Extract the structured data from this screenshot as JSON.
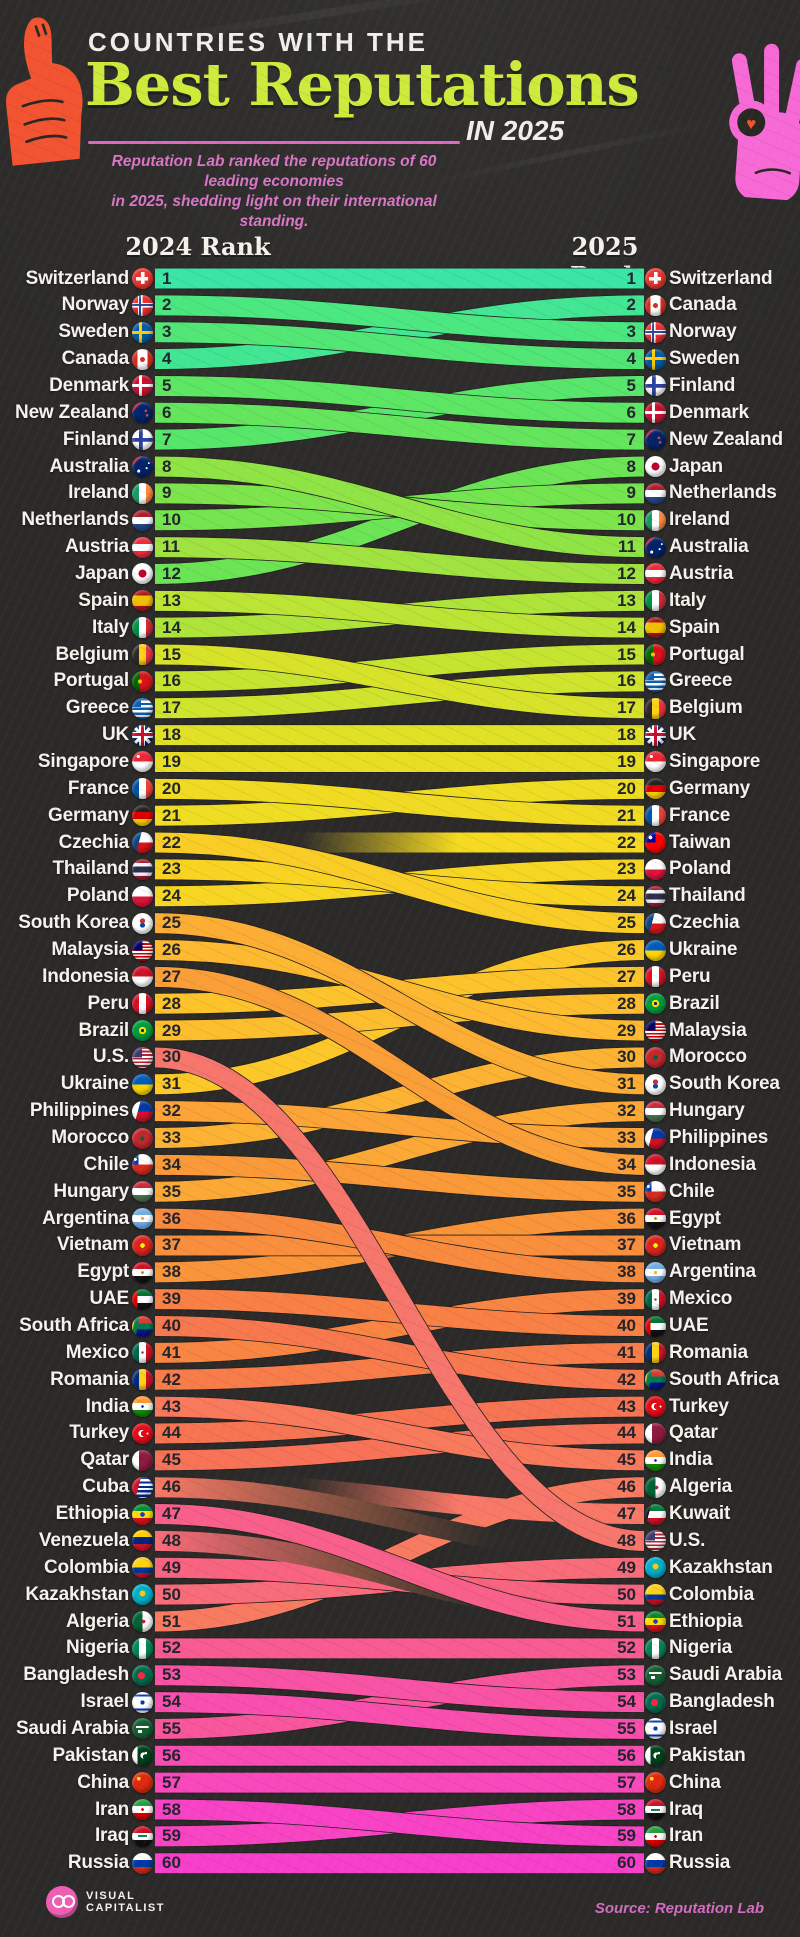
{
  "header": {
    "kicker": "COUNTRIES WITH THE",
    "title": "Best Reputations",
    "title_suffix": "IN 2025",
    "subtitle_line1": "Reputation Lab ranked the reputations of 60 leading economies",
    "subtitle_line2": "in 2025, shedding light on their international standing."
  },
  "columns": {
    "left": "2024 Rank",
    "right": "2025 Rank"
  },
  "footer": {
    "brand_line1": "VISUAL",
    "brand_line2": "CAPITALIST",
    "source": "Source: Reputation Lab"
  },
  "colors": {
    "background": "#2b2a28",
    "title_green": "#cdea37",
    "accent_pink": "#d967c3",
    "label_text": "#f6f2ec",
    "rank_text": "#21242b",
    "hand_left_orange": "#f2512e",
    "hand_right_pink": "#f768d6"
  },
  "chart_data": {
    "type": "slope",
    "title": "Countries with the Best Reputations in 2025",
    "left_axis_label": "2024 Rank",
    "right_axis_label": "2025 Rank",
    "rank_range": [
      1,
      60
    ],
    "rankings_2024": [
      {
        "rank": 1,
        "country": "Switzerland"
      },
      {
        "rank": 2,
        "country": "Norway"
      },
      {
        "rank": 3,
        "country": "Sweden"
      },
      {
        "rank": 4,
        "country": "Canada"
      },
      {
        "rank": 5,
        "country": "Denmark"
      },
      {
        "rank": 6,
        "country": "New Zealand"
      },
      {
        "rank": 7,
        "country": "Finland"
      },
      {
        "rank": 8,
        "country": "Australia"
      },
      {
        "rank": 9,
        "country": "Ireland"
      },
      {
        "rank": 10,
        "country": "Netherlands"
      },
      {
        "rank": 11,
        "country": "Austria"
      },
      {
        "rank": 12,
        "country": "Japan"
      },
      {
        "rank": 13,
        "country": "Spain"
      },
      {
        "rank": 14,
        "country": "Italy"
      },
      {
        "rank": 15,
        "country": "Belgium"
      },
      {
        "rank": 16,
        "country": "Portugal"
      },
      {
        "rank": 17,
        "country": "Greece"
      },
      {
        "rank": 18,
        "country": "UK"
      },
      {
        "rank": 19,
        "country": "Singapore"
      },
      {
        "rank": 20,
        "country": "France"
      },
      {
        "rank": 21,
        "country": "Germany"
      },
      {
        "rank": 22,
        "country": "Czechia"
      },
      {
        "rank": 23,
        "country": "Thailand"
      },
      {
        "rank": 24,
        "country": "Poland"
      },
      {
        "rank": 25,
        "country": "South Korea"
      },
      {
        "rank": 26,
        "country": "Malaysia"
      },
      {
        "rank": 27,
        "country": "Indonesia"
      },
      {
        "rank": 28,
        "country": "Peru"
      },
      {
        "rank": 29,
        "country": "Brazil"
      },
      {
        "rank": 30,
        "country": "U.S."
      },
      {
        "rank": 31,
        "country": "Ukraine"
      },
      {
        "rank": 32,
        "country": "Philippines"
      },
      {
        "rank": 33,
        "country": "Morocco"
      },
      {
        "rank": 34,
        "country": "Chile"
      },
      {
        "rank": 35,
        "country": "Hungary"
      },
      {
        "rank": 36,
        "country": "Argentina"
      },
      {
        "rank": 37,
        "country": "Vietnam"
      },
      {
        "rank": 38,
        "country": "Egypt"
      },
      {
        "rank": 39,
        "country": "UAE"
      },
      {
        "rank": 40,
        "country": "South Africa"
      },
      {
        "rank": 41,
        "country": "Mexico"
      },
      {
        "rank": 42,
        "country": "Romania"
      },
      {
        "rank": 43,
        "country": "India"
      },
      {
        "rank": 44,
        "country": "Turkey"
      },
      {
        "rank": 45,
        "country": "Qatar"
      },
      {
        "rank": 46,
        "country": "Cuba"
      },
      {
        "rank": 47,
        "country": "Ethiopia"
      },
      {
        "rank": 48,
        "country": "Venezuela"
      },
      {
        "rank": 49,
        "country": "Colombia"
      },
      {
        "rank": 50,
        "country": "Kazakhstan"
      },
      {
        "rank": 51,
        "country": "Algeria"
      },
      {
        "rank": 52,
        "country": "Nigeria"
      },
      {
        "rank": 53,
        "country": "Bangladesh"
      },
      {
        "rank": 54,
        "country": "Israel"
      },
      {
        "rank": 55,
        "country": "Saudi Arabia"
      },
      {
        "rank": 56,
        "country": "Pakistan"
      },
      {
        "rank": 57,
        "country": "China"
      },
      {
        "rank": 58,
        "country": "Iran"
      },
      {
        "rank": 59,
        "country": "Iraq"
      },
      {
        "rank": 60,
        "country": "Russia"
      }
    ],
    "rankings_2025": [
      {
        "rank": 1,
        "country": "Switzerland"
      },
      {
        "rank": 2,
        "country": "Canada"
      },
      {
        "rank": 3,
        "country": "Norway"
      },
      {
        "rank": 4,
        "country": "Sweden"
      },
      {
        "rank": 5,
        "country": "Finland"
      },
      {
        "rank": 6,
        "country": "Denmark"
      },
      {
        "rank": 7,
        "country": "New Zealand"
      },
      {
        "rank": 8,
        "country": "Japan"
      },
      {
        "rank": 9,
        "country": "Netherlands"
      },
      {
        "rank": 10,
        "country": "Ireland"
      },
      {
        "rank": 11,
        "country": "Australia"
      },
      {
        "rank": 12,
        "country": "Austria"
      },
      {
        "rank": 13,
        "country": "Italy"
      },
      {
        "rank": 14,
        "country": "Spain"
      },
      {
        "rank": 15,
        "country": "Portugal"
      },
      {
        "rank": 16,
        "country": "Greece"
      },
      {
        "rank": 17,
        "country": "Belgium"
      },
      {
        "rank": 18,
        "country": "UK"
      },
      {
        "rank": 19,
        "country": "Singapore"
      },
      {
        "rank": 20,
        "country": "Germany"
      },
      {
        "rank": 21,
        "country": "France"
      },
      {
        "rank": 22,
        "country": "Taiwan"
      },
      {
        "rank": 23,
        "country": "Poland"
      },
      {
        "rank": 24,
        "country": "Thailand"
      },
      {
        "rank": 25,
        "country": "Czechia"
      },
      {
        "rank": 26,
        "country": "Ukraine"
      },
      {
        "rank": 27,
        "country": "Peru"
      },
      {
        "rank": 28,
        "country": "Brazil"
      },
      {
        "rank": 29,
        "country": "Malaysia"
      },
      {
        "rank": 30,
        "country": "Morocco"
      },
      {
        "rank": 31,
        "country": "South Korea"
      },
      {
        "rank": 32,
        "country": "Hungary"
      },
      {
        "rank": 33,
        "country": "Philippines"
      },
      {
        "rank": 34,
        "country": "Indonesia"
      },
      {
        "rank": 35,
        "country": "Chile"
      },
      {
        "rank": 36,
        "country": "Egypt"
      },
      {
        "rank": 37,
        "country": "Vietnam"
      },
      {
        "rank": 38,
        "country": "Argentina"
      },
      {
        "rank": 39,
        "country": "Mexico"
      },
      {
        "rank": 40,
        "country": "UAE"
      },
      {
        "rank": 41,
        "country": "Romania"
      },
      {
        "rank": 42,
        "country": "South Africa"
      },
      {
        "rank": 43,
        "country": "Turkey"
      },
      {
        "rank": 44,
        "country": "Qatar"
      },
      {
        "rank": 45,
        "country": "India"
      },
      {
        "rank": 46,
        "country": "Algeria"
      },
      {
        "rank": 47,
        "country": "Kuwait"
      },
      {
        "rank": 48,
        "country": "U.S."
      },
      {
        "rank": 49,
        "country": "Kazakhstan"
      },
      {
        "rank": 50,
        "country": "Colombia"
      },
      {
        "rank": 51,
        "country": "Ethiopia"
      },
      {
        "rank": 52,
        "country": "Nigeria"
      },
      {
        "rank": 53,
        "country": "Saudi Arabia"
      },
      {
        "rank": 54,
        "country": "Bangladesh"
      },
      {
        "rank": 55,
        "country": "Israel"
      },
      {
        "rank": 56,
        "country": "Pakistan"
      },
      {
        "rank": 57,
        "country": "China"
      },
      {
        "rank": 58,
        "country": "Iraq"
      },
      {
        "rank": 59,
        "country": "Iran"
      },
      {
        "rank": 60,
        "country": "Russia"
      }
    ],
    "new_in_2025": [
      "Taiwan",
      "Kuwait"
    ],
    "dropped_after_2024": [
      "Cuba",
      "Venezuela"
    ],
    "palette_by_2025_rank": [
      "#36e6a4",
      "#3fe691",
      "#48e77e",
      "#4fe673",
      "#55e669",
      "#5be662",
      "#62e55b",
      "#6ae454",
      "#73e44e",
      "#7ce44a",
      "#8fe343",
      "#a0e23f",
      "#aee339",
      "#bce434",
      "#c5e42f",
      "#cfe42c",
      "#d8e229",
      "#e0e126",
      "#e7de24",
      "#eedd22",
      "#f0db22",
      "#f5da21",
      "#f6d622",
      "#f9d322",
      "#f9cd26",
      "#fcc829",
      "#fcc32b",
      "#fdbe2e",
      "#fdb930",
      "#fcb232",
      "#fcad34",
      "#fba835",
      "#fba336",
      "#fa9e37",
      "#fa9938",
      "#f99439",
      "#f98f3c",
      "#f88a3e",
      "#f88542",
      "#f88045",
      "#f87c4a",
      "#f7784e",
      "#f77453",
      "#f77257",
      "#f8795b",
      "#f87a60",
      "#f87867",
      "#f6766c",
      "#f86c79",
      "#f86480",
      "#f85f8a",
      "#f85a92",
      "#f8569c",
      "#f852a4",
      "#f84fae",
      "#f84bb4",
      "#f848bc",
      "#f844c2",
      "#f842c6",
      "#f83fcc"
    ]
  }
}
